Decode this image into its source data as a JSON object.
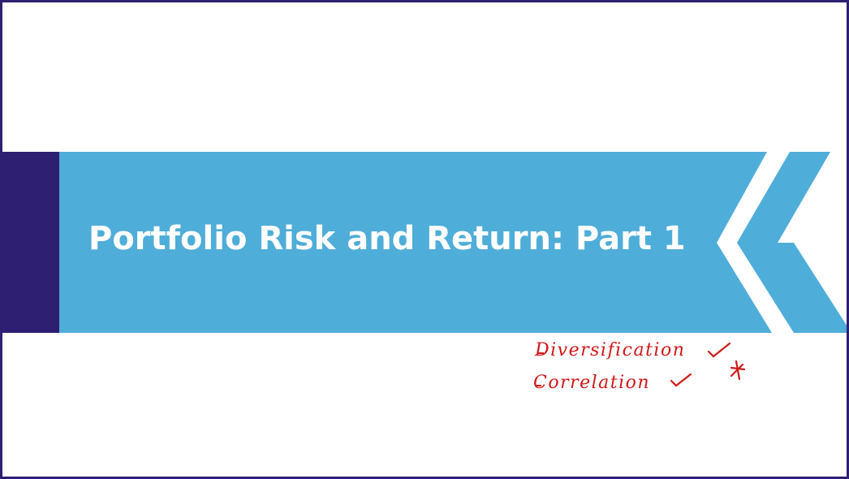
{
  "slide": {
    "title": "Portfolio Risk and Return: Part 1",
    "colors": {
      "banner": "#4fadd9",
      "left_block": "#2e1f73",
      "border": "#2e1f73",
      "annotation": "#d01818"
    }
  },
  "annotations": {
    "items": [
      {
        "dash": "-",
        "text": "Diversification",
        "mark": "check-icon"
      },
      {
        "dash": "-",
        "text": "Correlation",
        "mark": "check-icon"
      }
    ],
    "extra_mark": "star-icon"
  }
}
